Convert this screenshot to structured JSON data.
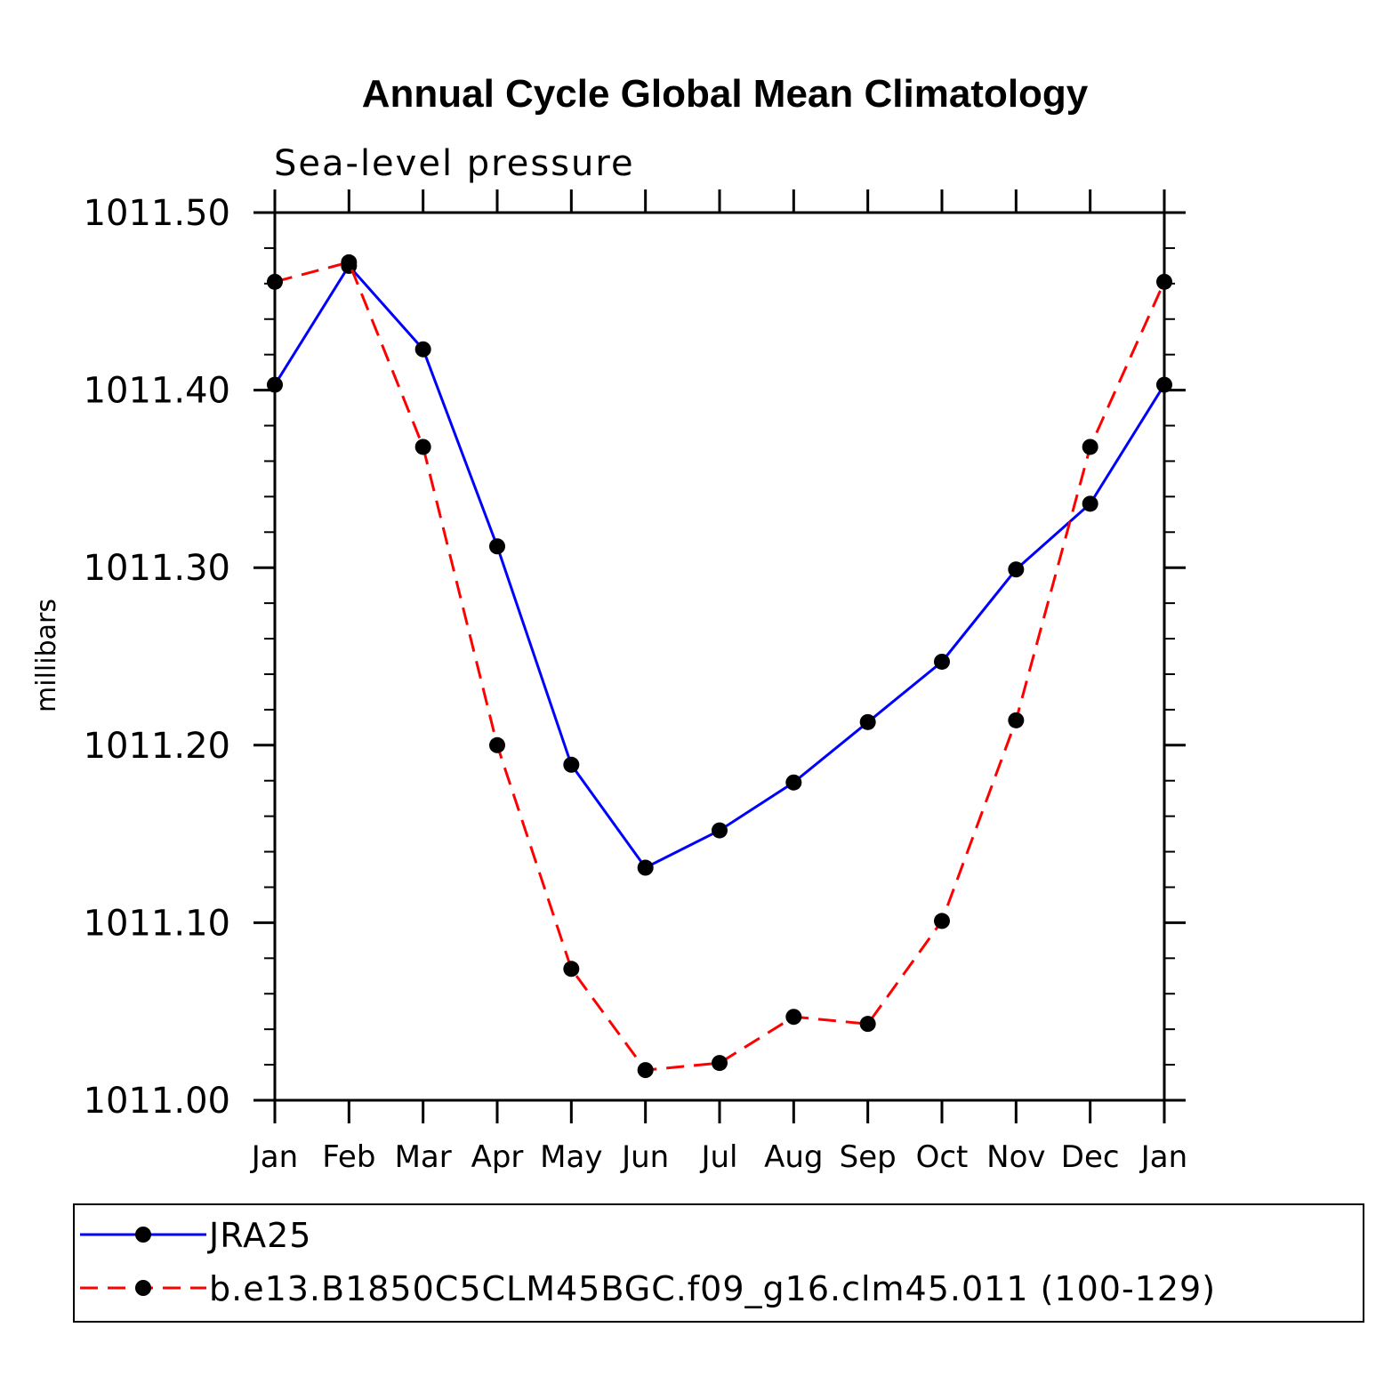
{
  "chart_data": {
    "type": "line",
    "title": "Annual Cycle Global Mean Climatology",
    "subtitle": "Sea-level pressure",
    "xlabel": "",
    "ylabel": "millibars",
    "categories": [
      "Jan",
      "Feb",
      "Mar",
      "Apr",
      "May",
      "Jun",
      "Jul",
      "Aug",
      "Sep",
      "Oct",
      "Nov",
      "Dec",
      "Jan"
    ],
    "ylim": [
      1011.0,
      1011.5
    ],
    "yticks": [
      1011.0,
      1011.1,
      1011.2,
      1011.3,
      1011.4,
      1011.5
    ],
    "ytick_labels": [
      "1011.00",
      "1011.10",
      "1011.20",
      "1011.30",
      "1011.40",
      "1011.50"
    ],
    "yminor_step": 0.02,
    "grid": false,
    "legend_position": "bottom",
    "series": [
      {
        "name": "JRA25",
        "color": "#0000ff",
        "style": "solid",
        "marker": "filled-circle",
        "values": [
          1011.403,
          1011.47,
          1011.423,
          1011.312,
          1011.189,
          1011.131,
          1011.152,
          1011.179,
          1011.213,
          1011.247,
          1011.299,
          1011.336,
          1011.403
        ]
      },
      {
        "name": "b.e13.B1850C5CLM45BGC.f09_g16.clm45.011 (100-129)",
        "color": "#ff0000",
        "style": "dashed",
        "marker": "filled-circle",
        "values": [
          1011.461,
          1011.472,
          1011.368,
          1011.2,
          1011.074,
          1011.017,
          1011.021,
          1011.047,
          1011.043,
          1011.101,
          1011.214,
          1011.368,
          1011.461
        ]
      }
    ]
  }
}
